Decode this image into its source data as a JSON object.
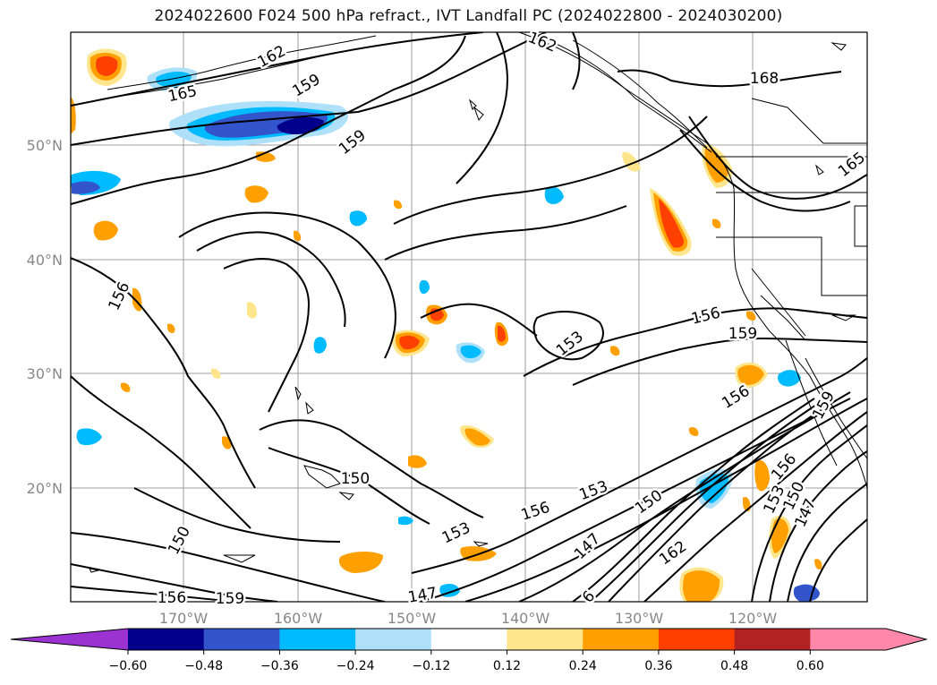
{
  "title": "2024022600 F024 500 hPa refract., IVT Landfall PC (2024022800 - 2024030200)",
  "map": {
    "lat_labels": [
      "50°N",
      "40°N",
      "30°N",
      "20°N"
    ],
    "lon_labels": [
      "170°W",
      "160°W",
      "150°W",
      "140°W",
      "130°W",
      "120°W"
    ],
    "contour_labels": [
      "162",
      "159",
      "165",
      "159",
      "162",
      "168",
      "165",
      "156",
      "156",
      "159",
      "153",
      "156",
      "159",
      "150",
      "153",
      "156",
      "150",
      "153",
      "147",
      "162",
      "156",
      "153",
      "150",
      "147",
      "150",
      "156",
      "159",
      "147",
      "6"
    ]
  },
  "colorbar": {
    "ticks": [
      "−0.60",
      "−0.48",
      "−0.36",
      "−0.24",
      "−0.12",
      "0.12",
      "0.24",
      "0.36",
      "0.48",
      "0.60"
    ],
    "colors": [
      "#9b32d2",
      "#00008c",
      "#3355cc",
      "#00bbff",
      "#aee0fa",
      "#ffffff",
      "#ffe68c",
      "#ffa000",
      "#ff4000",
      "#b22222",
      "#ff88aa"
    ]
  }
}
